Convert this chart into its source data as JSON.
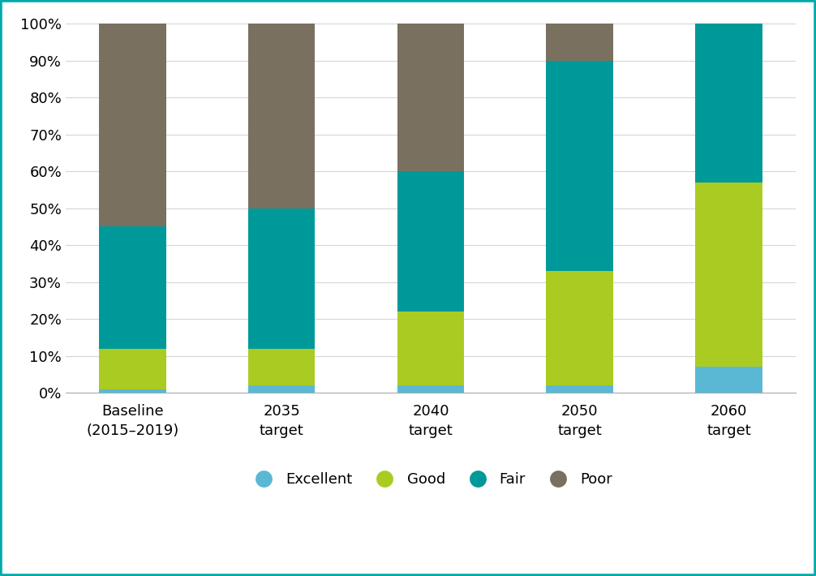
{
  "categories": [
    "Baseline\n(2015–2019)",
    "2035\ntarget",
    "2040\ntarget",
    "2050\ntarget",
    "2060\ntarget"
  ],
  "excellent": [
    1,
    2,
    2,
    2,
    7
  ],
  "good": [
    11,
    10,
    20,
    31,
    50
  ],
  "fair": [
    33,
    38,
    38,
    57,
    43
  ],
  "poor": [
    55,
    50,
    40,
    10,
    0
  ],
  "colors": {
    "excellent": "#5BB8D4",
    "good": "#AACC22",
    "fair": "#009999",
    "poor": "#7A7060"
  },
  "legend_labels": [
    "Excellent",
    "Good",
    "Fair",
    "Poor"
  ],
  "ylim": [
    0,
    100
  ],
  "ytick_labels": [
    "0%",
    "10%",
    "20%",
    "30%",
    "40%",
    "50%",
    "60%",
    "70%",
    "80%",
    "90%",
    "100%"
  ],
  "background_color": "#ffffff",
  "border_color": "#00AAAA",
  "grid_color": "#d5d5d5",
  "bar_width": 0.45,
  "tick_fontsize": 13,
  "legend_fontsize": 13
}
